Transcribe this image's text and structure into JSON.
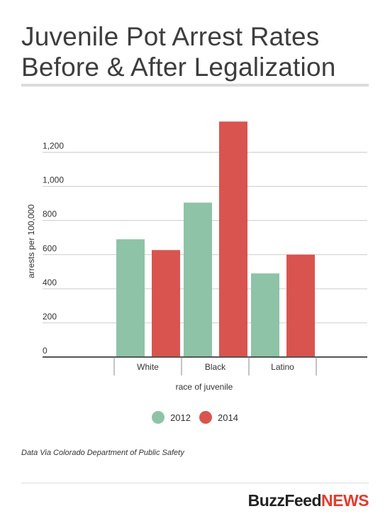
{
  "title": "Juvenile Pot Arrest Rates Before & After Legalization",
  "source": "Data Via Colorado Department of Public Safety",
  "logo": {
    "main": "BuzzFeed",
    "suffix": "NEWS"
  },
  "colors": {
    "2012": "#8ec3a7",
    "2014": "#d9544f",
    "grid": "#cccccc",
    "axis": "#555555"
  },
  "chart_data": {
    "type": "bar",
    "categories": [
      "White",
      "Black",
      "Latino"
    ],
    "series": [
      {
        "name": "2012",
        "values": [
          690,
          905,
          490
        ]
      },
      {
        "name": "2014",
        "values": [
          627,
          1380,
          600
        ]
      }
    ],
    "xlabel": "race of juvenile",
    "ylabel": "arrests per 100,000",
    "ylim": [
      0,
      1400
    ],
    "yticks": [
      0,
      200,
      400,
      600,
      800,
      1000,
      1200
    ],
    "ytick_labels": [
      "0",
      "200",
      "400",
      "600",
      "800",
      "1,000",
      "1,200"
    ],
    "grid": true,
    "legend": "bottom-center"
  }
}
